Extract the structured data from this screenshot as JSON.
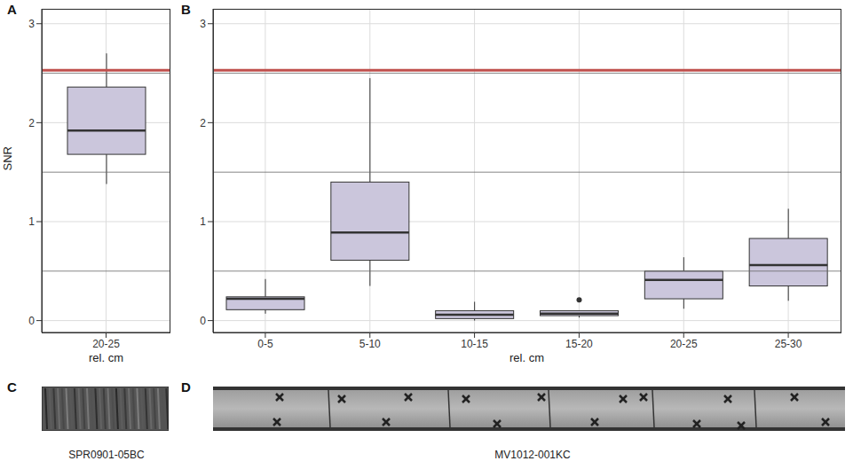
{
  "chart_data": [
    {
      "panel": "A",
      "type": "box",
      "categories": [
        "20-25"
      ],
      "x_label": "rel. cm",
      "y_label": "SNR",
      "ylim": [
        -0.12,
        3.15
      ],
      "yticks": [
        0,
        1,
        2,
        3
      ],
      "minor_yticks": [
        0.5,
        1.5,
        2.5
      ],
      "grid": true,
      "color": "#cbc6dc",
      "boxes": [
        {
          "min": 1.38,
          "q1": 1.68,
          "median": 1.92,
          "q3": 2.36,
          "max": 2.7,
          "outliers": []
        }
      ],
      "reference_line": {
        "value": 2.53,
        "color": "#c0504d"
      }
    },
    {
      "panel": "B",
      "type": "box",
      "categories": [
        "0-5",
        "5-10",
        "10-15",
        "15-20",
        "20-25",
        "25-30"
      ],
      "x_label": "rel. cm",
      "ylim": [
        -0.12,
        3.15
      ],
      "yticks": [
        0,
        1,
        2,
        3
      ],
      "minor_yticks": [
        0.5,
        1.5,
        2.5
      ],
      "grid": true,
      "color": "#cbc6dc",
      "boxes": [
        {
          "min": 0.07,
          "q1": 0.11,
          "median": 0.22,
          "q3": 0.24,
          "max": 0.42,
          "outliers": []
        },
        {
          "min": 0.35,
          "q1": 0.61,
          "median": 0.89,
          "q3": 1.4,
          "max": 2.45,
          "outliers": []
        },
        {
          "min": 0.0,
          "q1": 0.02,
          "median": 0.06,
          "q3": 0.1,
          "max": 0.19,
          "outliers": []
        },
        {
          "min": 0.03,
          "q1": 0.05,
          "median": 0.07,
          "q3": 0.1,
          "max": 0.1,
          "outliers": [
            0.21
          ]
        },
        {
          "min": 0.12,
          "q1": 0.22,
          "median": 0.41,
          "q3": 0.5,
          "max": 0.64,
          "outliers": []
        },
        {
          "min": 0.2,
          "q1": 0.35,
          "median": 0.56,
          "q3": 0.83,
          "max": 1.13,
          "outliers": []
        }
      ],
      "reference_line": {
        "value": 2.53,
        "color": "#c0504d"
      }
    }
  ],
  "images": [
    {
      "label": "C",
      "caption": "SPR0901-05BC"
    },
    {
      "label": "D",
      "caption": "MV1012-001KC"
    }
  ]
}
